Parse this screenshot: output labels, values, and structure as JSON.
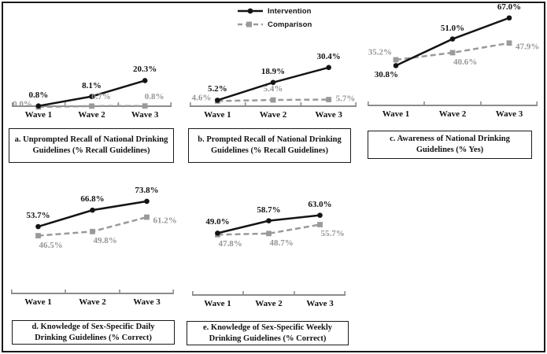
{
  "colors": {
    "intervention": "#141414",
    "comparison": "#9a9a9a",
    "comparison_label": "#969696",
    "axis": "#8c8c8c"
  },
  "legend": {
    "items": [
      {
        "label": "Intervention",
        "marker": "filled-circle",
        "line": "solid",
        "color": "#141414"
      },
      {
        "label": "Comparison",
        "marker": "filled-square",
        "line": "dashed",
        "color": "#9a9a9a"
      }
    ]
  },
  "chart_data": [
    {
      "id": "a",
      "type": "line",
      "title": "a. Unprompted Recall of National Drinking Guidelines (% Recall Guidelines)",
      "categories": [
        "Wave 1",
        "Wave 2",
        "Wave 3"
      ],
      "y_unit": "%",
      "ylim": [
        0,
        46
      ],
      "grid": false,
      "legend_position": "top-center-of-figure",
      "series": [
        {
          "name": "Intervention",
          "values": [
            0.8,
            8.1,
            20.3
          ],
          "point_labels": [
            "0.8%",
            "8.1%",
            "20.3%"
          ],
          "label_pos": [
            "above",
            "above",
            "above"
          ]
        },
        {
          "name": "Comparison",
          "values": [
            0.0,
            0.7,
            0.8
          ],
          "point_labels": [
            "0.0%",
            "0.7%",
            "0.8%"
          ],
          "label_pos": [
            "left",
            "above-right",
            "above-right"
          ]
        }
      ]
    },
    {
      "id": "b",
      "type": "line",
      "title": "b. Prompted Recall of National Drinking Guidelines (% Recall Guidelines)",
      "categories": [
        "Wave 1",
        "Wave 2",
        "Wave 3"
      ],
      "y_unit": "%",
      "ylim": [
        0,
        46
      ],
      "grid": false,
      "series": [
        {
          "name": "Intervention",
          "values": [
            5.2,
            18.9,
            30.4
          ],
          "point_labels": [
            "5.2%",
            "18.9%",
            "30.4%"
          ],
          "label_pos": [
            "above",
            "above",
            "above"
          ]
        },
        {
          "name": "Comparison",
          "values": [
            4.6,
            5.4,
            5.7
          ],
          "point_labels": [
            "4.6%",
            "5.4%",
            "5.7%"
          ],
          "label_pos": [
            "left",
            "above",
            "right"
          ]
        }
      ]
    },
    {
      "id": "c",
      "type": "line",
      "title": "c. Awareness of National Drinking Guidelines (% Yes)",
      "categories": [
        "Wave 1",
        "Wave 2",
        "Wave 3"
      ],
      "y_unit": "%",
      "ylim": [
        0,
        77
      ],
      "grid": false,
      "series": [
        {
          "name": "Intervention",
          "values": [
            30.8,
            51.0,
            67.0
          ],
          "point_labels": [
            "30.8%",
            "51.0%",
            "67.0%"
          ],
          "label_pos": [
            "below-left",
            "above",
            "above"
          ]
        },
        {
          "name": "Comparison",
          "values": [
            35.2,
            40.6,
            47.9
          ],
          "point_labels": [
            "35.2%",
            "40.6%",
            "47.9%"
          ],
          "label_pos": [
            "left-above",
            "below-right",
            "right-below"
          ]
        }
      ]
    },
    {
      "id": "d",
      "type": "line",
      "title": "d. Knowledge of Sex-Specific Daily Drinking Guidelines (% Correct)",
      "categories": [
        "Wave 1",
        "Wave 2",
        "Wave 3"
      ],
      "y_unit": "%",
      "ylim": [
        0,
        80
      ],
      "grid": false,
      "series": [
        {
          "name": "Intervention",
          "values": [
            53.7,
            66.8,
            73.8
          ],
          "point_labels": [
            "53.7%",
            "66.8%",
            "73.8%"
          ],
          "label_pos": [
            "above",
            "above",
            "above"
          ]
        },
        {
          "name": "Comparison",
          "values": [
            46.5,
            49.8,
            61.2
          ],
          "point_labels": [
            "46.5%",
            "49.8%",
            "61.2%"
          ],
          "label_pos": [
            "below-right",
            "below-right",
            "right-below"
          ]
        }
      ]
    },
    {
      "id": "e",
      "type": "line",
      "title": "e. Knowledge of Sex-Specific Weekly Drinking Guidelines (% Correct)",
      "categories": [
        "Wave 1",
        "Wave 2",
        "Wave 3"
      ],
      "y_unit": "%",
      "ylim": [
        0,
        80
      ],
      "grid": false,
      "series": [
        {
          "name": "Intervention",
          "values": [
            49.0,
            58.7,
            63.0
          ],
          "point_labels": [
            "49.0%",
            "58.7%",
            "63.0%"
          ],
          "label_pos": [
            "above",
            "above",
            "above"
          ]
        },
        {
          "name": "Comparison",
          "values": [
            47.8,
            48.7,
            55.7
          ],
          "point_labels": [
            "47.8%",
            "48.7%",
            "55.7%"
          ],
          "label_pos": [
            "below-right",
            "below-right",
            "below-right"
          ]
        }
      ]
    }
  ]
}
